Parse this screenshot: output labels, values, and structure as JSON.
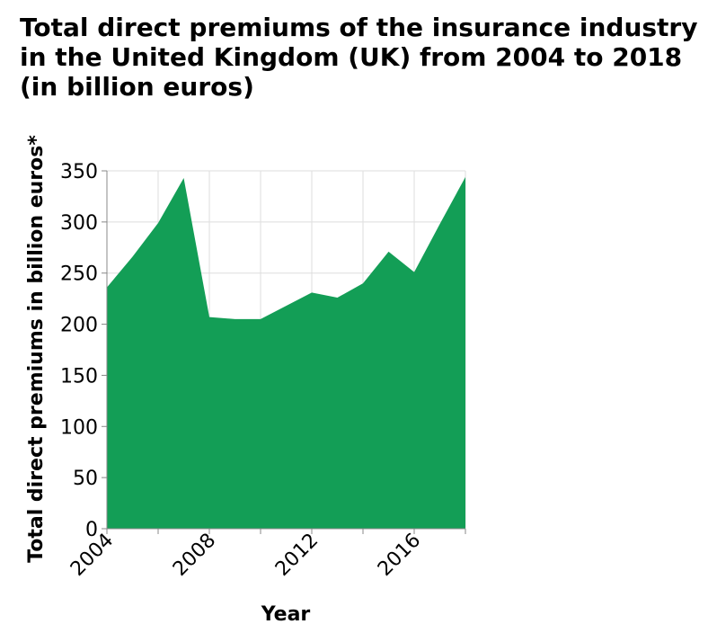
{
  "chart_data": {
    "type": "area",
    "title": "Total direct premiums of the insurance industry in the United Kingdom (UK) from 2004 to 2018 (in billion euros)",
    "xlabel": "Year",
    "ylabel": "Total direct premiums in billion euros*",
    "x": [
      2004,
      2005,
      2006,
      2007,
      2008,
      2009,
      2010,
      2011,
      2012,
      2013,
      2014,
      2015,
      2016,
      2017,
      2018
    ],
    "values": [
      236,
      266,
      299,
      343,
      207,
      205,
      205,
      218,
      231,
      226,
      240,
      271,
      251,
      298,
      344
    ],
    "xlim": [
      2004,
      2018
    ],
    "ylim": [
      0,
      350
    ],
    "xticks": [
      "2004",
      "2008",
      "2012",
      "2016"
    ],
    "yticks": [
      "0",
      "50",
      "100",
      "150",
      "200",
      "250",
      "300",
      "350"
    ],
    "grid": true,
    "legend": "none",
    "colors": {
      "area": "#139e56",
      "grid": "#dddddd",
      "axis": "#888888"
    }
  }
}
